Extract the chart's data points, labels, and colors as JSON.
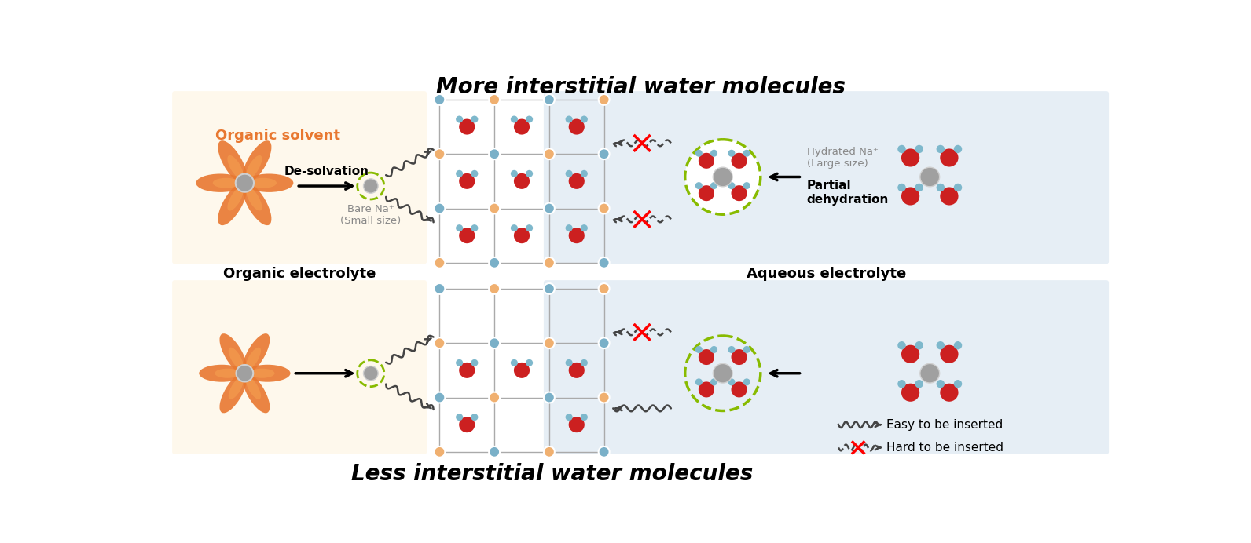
{
  "title_top": "More interstitial water molecules",
  "title_bottom": "Less interstitial water molecules",
  "label_organic": "Organic electrolyte",
  "label_aqueous": "Aqueous electrolyte",
  "label_organic_solvent": "Organic solvent",
  "label_desolvation": "De-solvation",
  "label_bare_na": "Bare Na⁺\n(Small size)",
  "label_hydrated_na": "Hydrated Na⁺\n(Large size)",
  "label_partial_dehyd": "Partial\ndehydration",
  "label_easy": "Easy to be inserted",
  "label_hard": "Hard to be inserted",
  "bg_organic": "#fef8ec",
  "bg_aqueous": "#e6eef5",
  "color_orange": "#e87830",
  "color_orange2": "#f0a060",
  "color_red": "#cc2020",
  "color_blue_h": "#7eb8cc",
  "color_gray_na": "#a0a0a0",
  "color_green_dash": "#88bb00",
  "color_node_orange": "#f0b070",
  "color_node_blue": "#7ab0c8",
  "color_line": "#aaaaaa",
  "color_text": "#333333",
  "color_gray_text": "#888888"
}
